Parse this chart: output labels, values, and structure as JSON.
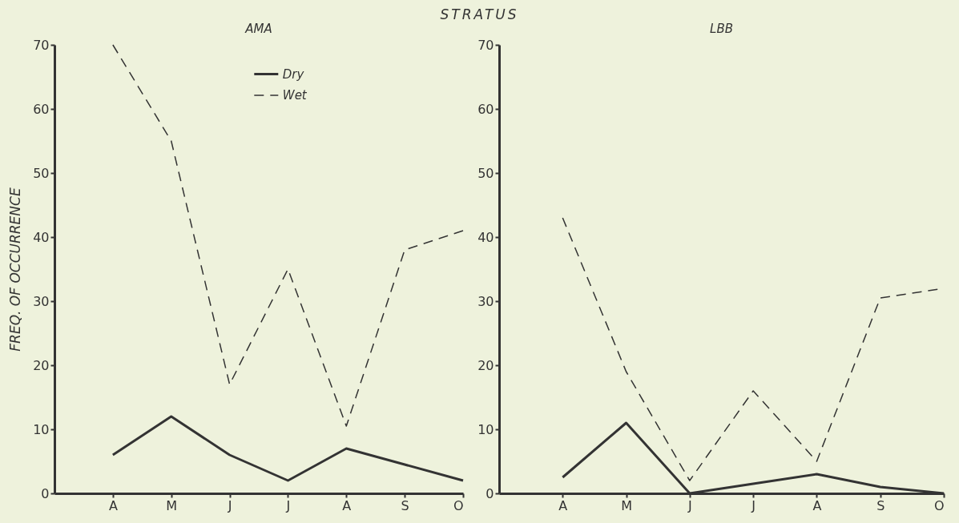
{
  "chart_data": [
    {
      "type": "line",
      "title": "AMA",
      "ylabel": "FREQ.  OF  OCCURRENCE",
      "annotations": [
        "STRATUS"
      ],
      "categories": [
        "A",
        "M",
        "J",
        "J",
        "A",
        "S",
        "O"
      ],
      "series": [
        {
          "name": "Dry",
          "color": "#333333",
          "line_style": "solid",
          "values": [
            6,
            12,
            6,
            2,
            7,
            4.5,
            2
          ]
        },
        {
          "name": "Wet",
          "color": "#333333",
          "line_style": "dashed",
          "values": [
            70,
            55,
            17,
            35,
            10.5,
            38,
            41
          ]
        }
      ],
      "ylim": [
        0,
        70
      ],
      "yticks": [
        0,
        10,
        20,
        30,
        40,
        50,
        60,
        70
      ],
      "legend": "top",
      "grid": false
    },
    {
      "type": "line",
      "title": "LBB",
      "categories": [
        "A",
        "M",
        "J",
        "J",
        "A",
        "S",
        "O"
      ],
      "series": [
        {
          "color": "#333333",
          "line_style": "solid",
          "values": [
            2.5,
            11,
            0,
            1.5,
            3,
            1,
            0
          ]
        },
        {
          "color": "#333333",
          "line_style": "dashed",
          "values": [
            43,
            19,
            2,
            16,
            5,
            30.5,
            32
          ]
        }
      ],
      "ylim": [
        0,
        70
      ],
      "yticks": [
        0,
        10,
        20,
        30,
        40,
        50,
        60,
        70
      ],
      "grid": false
    }
  ]
}
